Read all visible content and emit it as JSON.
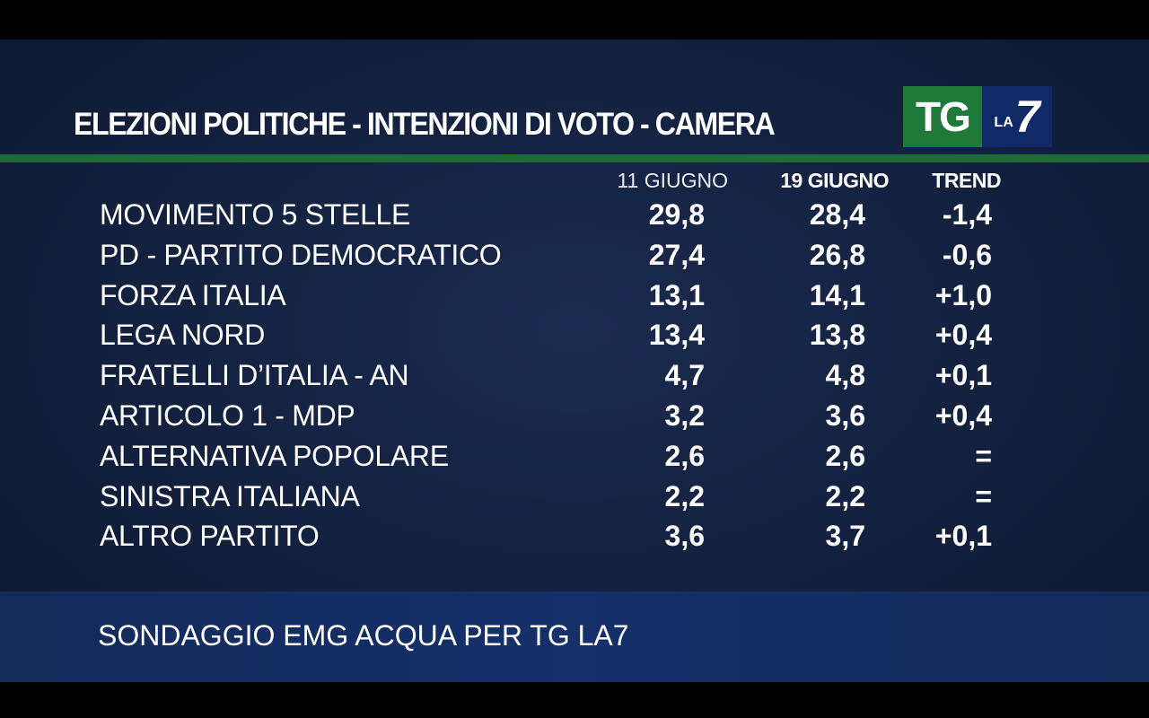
{
  "title": "ELEZIONI POLITICHE - INTENZIONI DI VOTO - CAMERA",
  "logo": {
    "tg": "TG",
    "la": "LA",
    "seven": "7"
  },
  "source": "SONDAGGIO EMG ACQUA PER TG LA7",
  "colors": {
    "background": "#13213f",
    "rule": "#1f6a36",
    "footer": "#15306a",
    "text": "#ffffff"
  },
  "chart_data": {
    "type": "table",
    "title": "ELEZIONI POLITICHE - INTENZIONI DI VOTO - CAMERA",
    "columns": [
      "11 GIUGNO",
      "19 GIUGNO",
      "TREND"
    ],
    "rows": [
      {
        "party": "MOVIMENTO 5 STELLE",
        "v1": "29,8",
        "v2": "28,4",
        "trend": "-1,4"
      },
      {
        "party": "PD - PARTITO DEMOCRATICO",
        "v1": "27,4",
        "v2": "26,8",
        "trend": "-0,6"
      },
      {
        "party": "FORZA ITALIA",
        "v1": "13,1",
        "v2": "14,1",
        "trend": "+1,0"
      },
      {
        "party": "LEGA NORD",
        "v1": "13,4",
        "v2": "13,8",
        "trend": "+0,4"
      },
      {
        "party": "FRATELLI D’ITALIA - AN",
        "v1": "4,7",
        "v2": "4,8",
        "trend": "+0,1"
      },
      {
        "party": "ARTICOLO 1 - MDP",
        "v1": "3,2",
        "v2": "3,6",
        "trend": "+0,4"
      },
      {
        "party": "ALTERNATIVA POPOLARE",
        "v1": "2,6",
        "v2": "2,6",
        "trend": "="
      },
      {
        "party": "SINISTRA ITALIANA",
        "v1": "2,2",
        "v2": "2,2",
        "trend": "="
      },
      {
        "party": "ALTRO PARTITO",
        "v1": "3,6",
        "v2": "3,7",
        "trend": "+0,1"
      }
    ],
    "source": "SONDAGGIO EMG ACQUA PER TG LA7"
  }
}
